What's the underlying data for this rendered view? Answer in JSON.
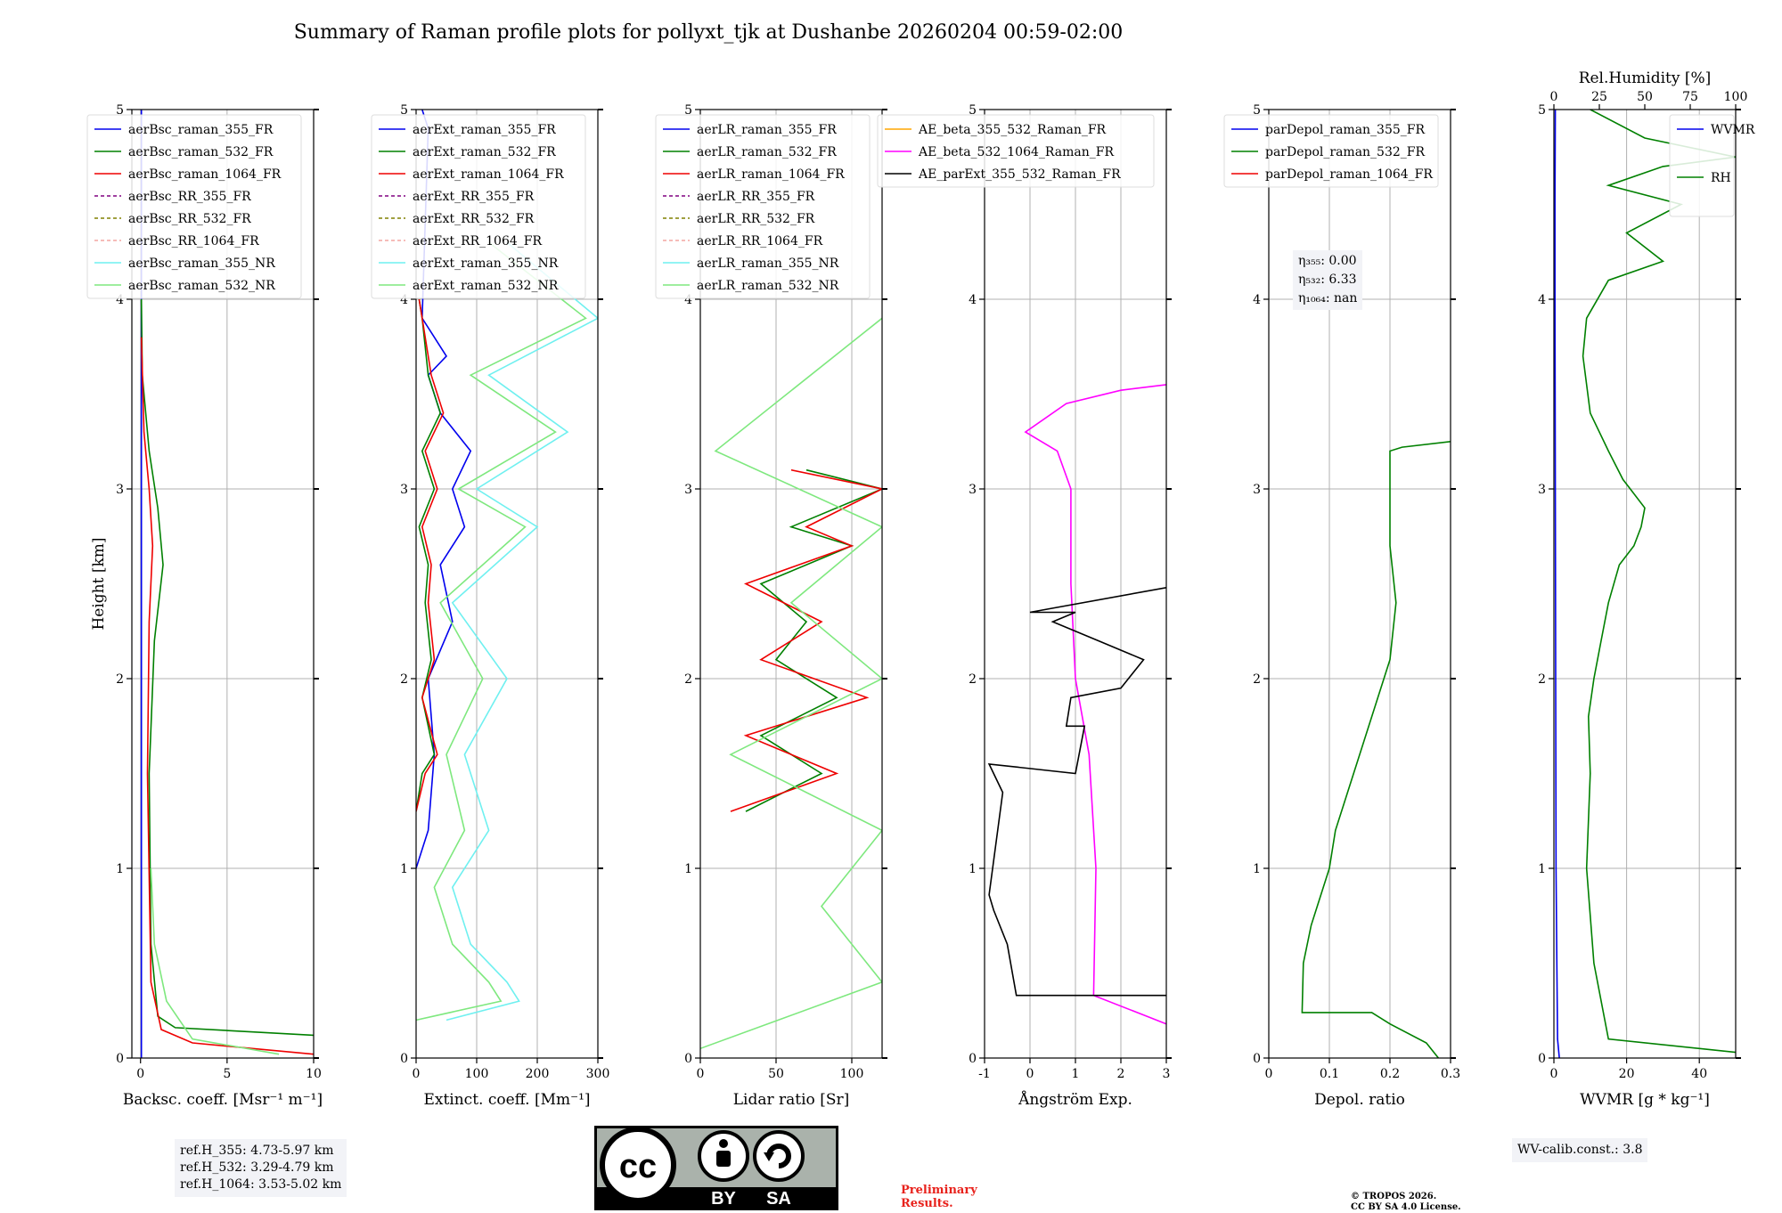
{
  "title": "Summary of Raman profile plots for pollyxt_tjk at Dushanbe 20260204 00:59-02:00",
  "ylabel": "Height [km]",
  "ylim": [
    0,
    5
  ],
  "yticks": [
    0,
    1,
    2,
    3,
    4,
    5
  ],
  "chart_data": [
    {
      "type": "line",
      "xlabel": "Backsc. coeff. [Msr⁻¹ m⁻¹]",
      "xlim": [
        -0.5,
        10
      ],
      "xticks": [
        0,
        5,
        10
      ],
      "legend": "top-left",
      "series": [
        {
          "name": "aerBsc_raman_355_FR",
          "color": "#0000ee",
          "dash": "",
          "x": [
            0.05,
            0.05,
            0.05,
            0.05
          ],
          "y": [
            0.0,
            1.0,
            3.0,
            5.0
          ]
        },
        {
          "name": "aerBsc_raman_532_FR",
          "color": "#008000",
          "dash": "",
          "x": [
            10.0,
            2.0,
            1.0,
            0.6,
            0.5,
            0.8,
            1.3,
            1.0,
            0.5,
            0.1,
            0.05
          ],
          "y": [
            0.12,
            0.16,
            0.22,
            0.6,
            1.5,
            2.2,
            2.6,
            2.9,
            3.2,
            3.6,
            4.0
          ]
        },
        {
          "name": "aerBsc_raman_1064_FR",
          "color": "#ee0000",
          "dash": "",
          "x": [
            10.0,
            3.0,
            1.2,
            0.6,
            0.4,
            0.5,
            0.7,
            0.5,
            0.2,
            0.05
          ],
          "y": [
            0.02,
            0.08,
            0.15,
            0.4,
            1.5,
            2.3,
            2.7,
            3.0,
            3.3,
            3.8
          ]
        },
        {
          "name": "aerBsc_RR_355_FR",
          "color": "#800080",
          "dash": "4 3",
          "x": [],
          "y": []
        },
        {
          "name": "aerBsc_RR_532_FR",
          "color": "#808000",
          "dash": "4 3",
          "x": [],
          "y": []
        },
        {
          "name": "aerBsc_RR_1064_FR",
          "color": "#f4a6a0",
          "dash": "4 3",
          "x": [],
          "y": []
        },
        {
          "name": "aerBsc_raman_355_NR",
          "color": "#6ff0f0",
          "dash": "",
          "x": [],
          "y": []
        },
        {
          "name": "aerBsc_raman_532_NR",
          "color": "#7ee87e",
          "dash": "",
          "x": [
            8.0,
            3.0,
            1.5,
            0.8,
            0.6
          ],
          "y": [
            0.02,
            0.1,
            0.3,
            0.6,
            1.0
          ]
        }
      ],
      "annotation": [
        "ref.H_355: 4.73-5.97 km",
        "ref.H_532: 3.29-4.79 km",
        "ref.H_1064: 3.53-5.02 km"
      ]
    },
    {
      "type": "line",
      "xlabel": "Extinct. coeff. [Mm⁻¹]",
      "xlim": [
        0,
        300
      ],
      "xticks": [
        0,
        100,
        200,
        300
      ],
      "legend": "top-left",
      "series": [
        {
          "name": "aerExt_raman_355_FR",
          "color": "#0000ee",
          "dash": "",
          "x": [
            0,
            20,
            30,
            20,
            60,
            40,
            80,
            60,
            90,
            40,
            20,
            50,
            30,
            10,
            20,
            10
          ],
          "y": [
            1.0,
            1.2,
            1.6,
            2.0,
            2.3,
            2.6,
            2.8,
            3.0,
            3.2,
            3.4,
            3.6,
            3.7,
            3.8,
            3.9,
            4.9,
            5.0
          ]
        },
        {
          "name": "aerExt_raman_532_FR",
          "color": "#008000",
          "dash": "",
          "x": [
            0,
            10,
            30,
            10,
            25,
            15,
            20,
            5,
            30,
            10,
            40,
            20,
            10,
            5
          ],
          "y": [
            1.3,
            1.5,
            1.6,
            1.9,
            2.1,
            2.4,
            2.6,
            2.8,
            3.0,
            3.2,
            3.4,
            3.6,
            3.9,
            4.0
          ]
        },
        {
          "name": "aerExt_raman_1064_FR",
          "color": "#ee0000",
          "dash": "",
          "x": [
            0,
            15,
            35,
            10,
            30,
            20,
            25,
            10,
            35,
            15,
            45,
            25,
            10,
            5
          ],
          "y": [
            1.3,
            1.5,
            1.6,
            1.9,
            2.1,
            2.4,
            2.6,
            2.8,
            3.0,
            3.2,
            3.4,
            3.6,
            3.9,
            4.0
          ]
        },
        {
          "name": "aerExt_RR_355_FR",
          "color": "#800080",
          "dash": "4 3",
          "x": [],
          "y": []
        },
        {
          "name": "aerExt_RR_532_FR",
          "color": "#808000",
          "dash": "4 3",
          "x": [],
          "y": []
        },
        {
          "name": "aerExt_RR_1064_FR",
          "color": "#f4a6a0",
          "dash": "4 3",
          "x": [],
          "y": []
        },
        {
          "name": "aerExt_raman_355_NR",
          "color": "#6ff0f0",
          "dash": "",
          "x": [
            50,
            170,
            150,
            90,
            60,
            120,
            80,
            150,
            60,
            200,
            100,
            250,
            120,
            300,
            150
          ],
          "y": [
            0.2,
            0.3,
            0.4,
            0.6,
            0.9,
            1.2,
            1.6,
            2.0,
            2.4,
            2.8,
            3.0,
            3.3,
            3.6,
            3.9,
            4.3
          ]
        },
        {
          "name": "aerExt_raman_532_NR",
          "color": "#7ee87e",
          "dash": "",
          "x": [
            0,
            140,
            120,
            60,
            30,
            80,
            50,
            110,
            40,
            180,
            70,
            230,
            90,
            280,
            120
          ],
          "y": [
            0.2,
            0.3,
            0.4,
            0.6,
            0.9,
            1.2,
            1.6,
            2.0,
            2.4,
            2.8,
            3.0,
            3.3,
            3.6,
            3.9,
            4.3
          ]
        }
      ]
    },
    {
      "type": "line",
      "xlabel": "Lidar ratio [Sr]",
      "xlim": [
        0,
        120
      ],
      "xticks": [
        0,
        50,
        100
      ],
      "legend": "top-left",
      "series": [
        {
          "name": "aerLR_raman_355_FR",
          "color": "#0000ee",
          "dash": "",
          "x": [],
          "y": []
        },
        {
          "name": "aerLR_raman_532_FR",
          "color": "#008000",
          "dash": "",
          "x": [
            30,
            80,
            40,
            90,
            50,
            70,
            40,
            100,
            60,
            120,
            70
          ],
          "y": [
            1.3,
            1.5,
            1.7,
            1.9,
            2.1,
            2.3,
            2.5,
            2.7,
            2.8,
            3.0,
            3.1
          ]
        },
        {
          "name": "aerLR_raman_1064_FR",
          "color": "#ee0000",
          "dash": "",
          "x": [
            20,
            90,
            30,
            110,
            40,
            80,
            30,
            100,
            70,
            120,
            60
          ],
          "y": [
            1.3,
            1.5,
            1.7,
            1.9,
            2.1,
            2.3,
            2.5,
            2.7,
            2.8,
            3.0,
            3.1
          ]
        },
        {
          "name": "aerLR_RR_355_FR",
          "color": "#800080",
          "dash": "4 3",
          "x": [],
          "y": []
        },
        {
          "name": "aerLR_RR_532_FR",
          "color": "#808000",
          "dash": "4 3",
          "x": [],
          "y": []
        },
        {
          "name": "aerLR_RR_1064_FR",
          "color": "#f4a6a0",
          "dash": "4 3",
          "x": [],
          "y": []
        },
        {
          "name": "aerLR_raman_355_NR",
          "color": "#6ff0f0",
          "dash": "",
          "x": [],
          "y": []
        },
        {
          "name": "aerLR_raman_532_NR",
          "color": "#7ee87e",
          "dash": "",
          "x": [
            0,
            120,
            80,
            120,
            20,
            120,
            60,
            120,
            10,
            120
          ],
          "y": [
            0.05,
            0.4,
            0.8,
            1.2,
            1.6,
            2.0,
            2.4,
            2.8,
            3.2,
            3.9
          ]
        }
      ]
    },
    {
      "type": "line",
      "xlabel": "Ångström Exp.",
      "xlim": [
        -1,
        3
      ],
      "xticks": [
        -1,
        0,
        1,
        2,
        3
      ],
      "legend": "top-left",
      "series": [
        {
          "name": "AE_beta_355_532_Raman_FR",
          "color": "#ffa500",
          "dash": "",
          "x": [],
          "y": []
        },
        {
          "name": "AE_beta_532_1064_Raman_FR",
          "color": "#ff00ff",
          "dash": "",
          "x": [
            3.0,
            1.4,
            1.45,
            1.3,
            1.0,
            0.9,
            0.9,
            0.6,
            -0.1,
            0.8,
            2.0,
            3.0
          ],
          "y": [
            0.18,
            0.33,
            1.0,
            1.6,
            2.0,
            2.5,
            3.0,
            3.2,
            3.3,
            3.45,
            3.52,
            3.55
          ]
        },
        {
          "name": "AE_parExt_355_532_Raman_FR",
          "color": "#000000",
          "dash": "",
          "x": [
            3.0,
            -0.3,
            -0.5,
            -0.8,
            -0.9,
            -0.6,
            -0.9,
            1.0,
            1.2,
            0.8,
            0.9,
            2.0,
            2.5,
            1.5,
            0.5,
            1.0,
            0.0,
            3.0
          ],
          "y": [
            0.33,
            0.33,
            0.6,
            0.78,
            0.86,
            1.4,
            1.55,
            1.5,
            1.75,
            1.75,
            1.9,
            1.95,
            2.1,
            2.2,
            2.3,
            2.35,
            2.35,
            2.48
          ]
        }
      ]
    },
    {
      "type": "line",
      "xlabel": "Depol. ratio",
      "xlim": [
        0,
        0.3
      ],
      "xticks": [
        0.0,
        0.1,
        0.2,
        0.3
      ],
      "legend": "top-left",
      "series": [
        {
          "name": "parDepol_raman_355_FR",
          "color": "#0000ee",
          "dash": "",
          "x": [],
          "y": []
        },
        {
          "name": "parDepol_raman_532_FR",
          "color": "#008000",
          "dash": "",
          "x": [
            0.28,
            0.26,
            0.2,
            0.17,
            0.055,
            0.057,
            0.07,
            0.1,
            0.11,
            0.14,
            0.17,
            0.2,
            0.21,
            0.2,
            0.2,
            0.2,
            0.2,
            0.22,
            0.3
          ],
          "y": [
            0.0,
            0.08,
            0.18,
            0.24,
            0.24,
            0.5,
            0.7,
            1.0,
            1.2,
            1.5,
            1.8,
            2.1,
            2.4,
            2.7,
            2.9,
            3.1,
            3.2,
            3.22,
            3.25
          ]
        },
        {
          "name": "parDepol_raman_1064_FR",
          "color": "#ee0000",
          "dash": "",
          "x": [],
          "y": []
        }
      ],
      "annotation": [
        "η₃₅₅: 0.00",
        "η₅₃₂: 6.33",
        "η₁₀₆₄: nan"
      ]
    },
    {
      "type": "line",
      "xlabel": "WVMR [g * kg⁻¹]",
      "xlim": [
        0,
        50
      ],
      "xticks": [
        0,
        20,
        40
      ],
      "top_xlabel": "Rel.Humidity [%]",
      "top_xlim": [
        0,
        100
      ],
      "top_xticks": [
        0,
        25,
        50,
        75,
        100
      ],
      "legend": "top-right",
      "series": [
        {
          "name": "WVMR",
          "color": "#0000ee",
          "dash": "",
          "axis": "bottom",
          "x": [
            1.5,
            1.0,
            0.8,
            0.6,
            0.5,
            0.4,
            0.3,
            0.3,
            0.4
          ],
          "y": [
            0.0,
            0.1,
            0.5,
            1.0,
            2.0,
            3.0,
            4.0,
            4.5,
            5.0
          ]
        },
        {
          "name": "RH",
          "color": "#008000",
          "dash": "",
          "axis": "top",
          "x": [
            100,
            30,
            22,
            18,
            20,
            19,
            22,
            26,
            30,
            36,
            44,
            48,
            50,
            42,
            38,
            30,
            20,
            16,
            18,
            30,
            60,
            40,
            70,
            30,
            60,
            100,
            50,
            20
          ],
          "y": [
            0.03,
            0.1,
            0.5,
            1.0,
            1.5,
            1.8,
            2.0,
            2.2,
            2.4,
            2.6,
            2.7,
            2.8,
            2.9,
            3.0,
            3.05,
            3.2,
            3.4,
            3.7,
            3.9,
            4.1,
            4.2,
            4.35,
            4.5,
            4.6,
            4.7,
            4.75,
            4.85,
            5.0
          ]
        }
      ],
      "annotation": [
        "WV-calib.const.: 3.8"
      ]
    }
  ],
  "footer": {
    "preliminary_line1": "Preliminary",
    "preliminary_line2": "Results.",
    "copyright_line1": "© TROPOS 2026.",
    "copyright_line2": "CC BY SA 4.0 License.",
    "badge_cc": "cc",
    "badge_by": "BY",
    "badge_sa": "SA"
  }
}
